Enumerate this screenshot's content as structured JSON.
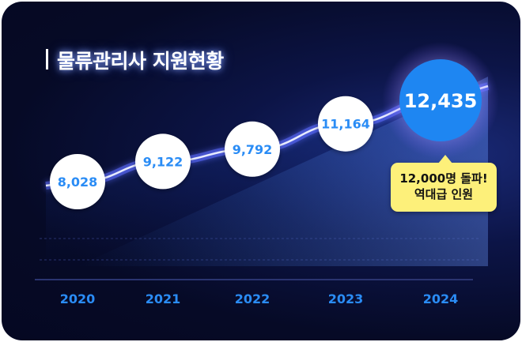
{
  "title": "물류관리사 지원현황",
  "chart_data": {
    "type": "line",
    "title": "물류관리사 지원현황",
    "categories": [
      "2020",
      "2021",
      "2022",
      "2023",
      "2024"
    ],
    "values": [
      8028,
      9122,
      9792,
      11164,
      12435
    ],
    "value_labels": [
      "8,028",
      "9,122",
      "9,792",
      "11,164",
      "12,435"
    ],
    "xlabel": "",
    "ylabel": "",
    "grid": true,
    "highlight_index": 4
  },
  "callout": {
    "line1": "12,000명 돌파!",
    "line2": "역대급 인원"
  },
  "colors": {
    "background": "#060a26",
    "line": "#6f7dff",
    "label_blue": "#2a8cf5",
    "highlight": "#1e86f2",
    "callout_bg": "#fdf07a"
  }
}
